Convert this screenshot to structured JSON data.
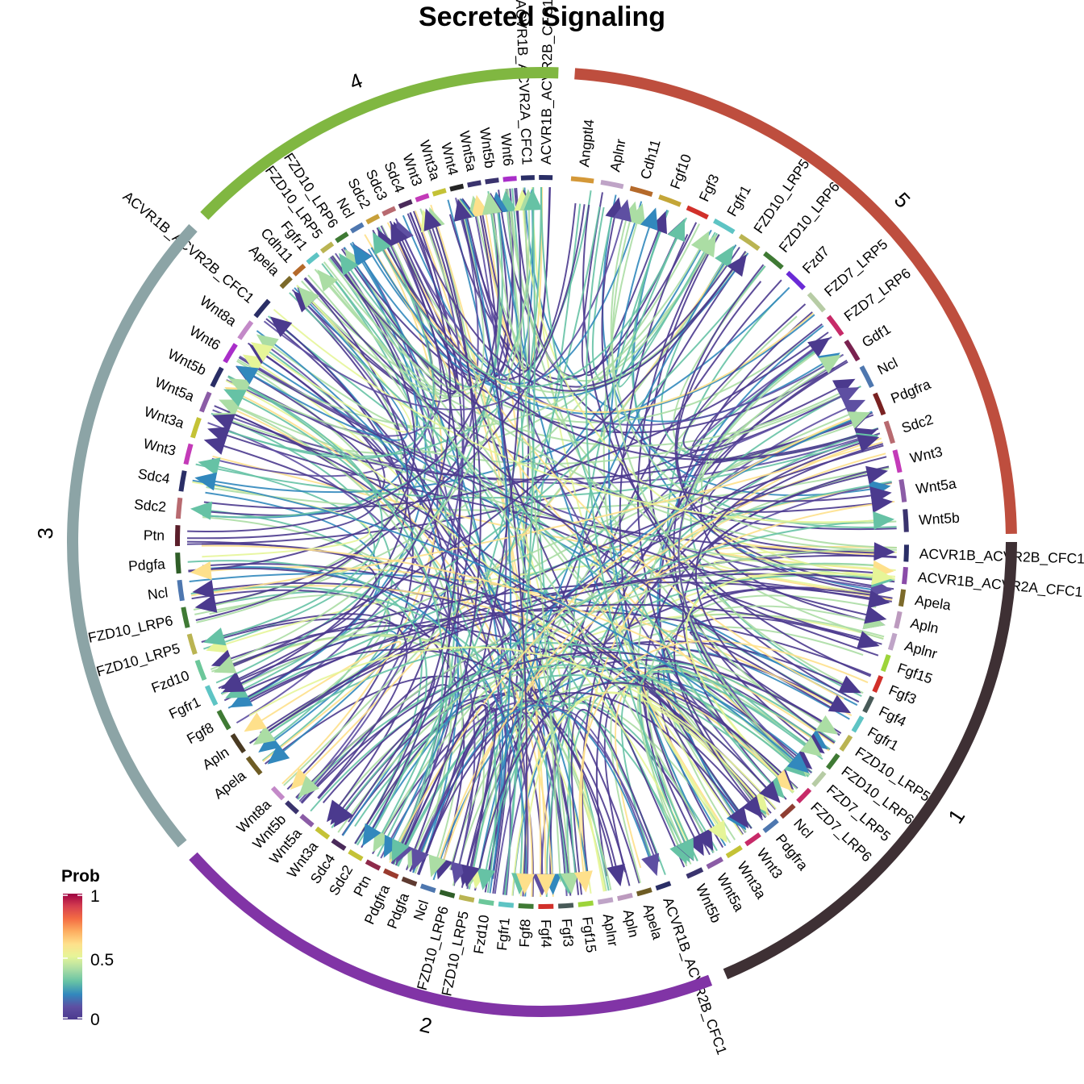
{
  "title": "Secreted Signaling",
  "legend": {
    "title": "Prob",
    "ticks": [
      "1",
      "0.5",
      "0"
    ],
    "gradient": [
      "#9E0142",
      "#D53E4F",
      "#F46D43",
      "#FDAE61",
      "#FEE08B",
      "#E6F598",
      "#ABDDA4",
      "#66C2A5",
      "#3288BD",
      "#5E4FA2",
      "#4B3A8E"
    ]
  },
  "groups": [
    {
      "label": "1",
      "color": "#3E3034"
    },
    {
      "label": "2",
      "color": "#8134A6"
    },
    {
      "label": "3",
      "color": "#8CA4A6"
    },
    {
      "label": "4",
      "color": "#80B741"
    },
    {
      "label": "5",
      "color": "#BE4E3E"
    }
  ],
  "sectors": [
    [
      "ACVR1B_ACVR2B_CFC1",
      "#2A2E66",
      0
    ],
    [
      "ACVR1B_ACVR2A_CFC1",
      "#8A4BA8",
      0
    ],
    [
      "Apela",
      "#7C6A2A",
      0
    ],
    [
      "Apln",
      "#BC9ABE",
      0
    ],
    [
      "Aplnr",
      "#BFA4C7",
      0
    ],
    [
      "Fgf15",
      "#9DD43A",
      0
    ],
    [
      "Fgf3",
      "#D1302A",
      0
    ],
    [
      "Fgf4",
      "#485A58",
      0
    ],
    [
      "Fgfr1",
      "#5EC4C4",
      0
    ],
    [
      "FZD10_LRP5",
      "#BAB452",
      0
    ],
    [
      "FZD10_LRP6",
      "#3F7A34",
      0
    ],
    [
      "FZD7_LRP5",
      "#B7CCA5",
      0
    ],
    [
      "FZD7_LRP6",
      "#C72A68",
      0
    ],
    [
      "Ncl",
      "#8F3E32",
      0
    ],
    [
      "Pdgfra",
      "#4E77AF",
      0
    ],
    [
      "Wnt3",
      "#C72A68",
      0
    ],
    [
      "Wnt3a",
      "#C4C236",
      0
    ],
    [
      "Wnt5a",
      "#8B5CA6",
      0
    ],
    [
      "Wnt5b",
      "#3A336E",
      0
    ],
    [
      "ACVR1B_ACVR2B_CFC1",
      "#2A2E66",
      1
    ],
    [
      "Apela",
      "#6E5C24",
      1
    ],
    [
      "Apln",
      "#BC9ABE",
      1
    ],
    [
      "Aplnr",
      "#BFA4C7",
      1
    ],
    [
      "Fgf15",
      "#9DD43A",
      1
    ],
    [
      "Fgf3",
      "#485A58",
      1
    ],
    [
      "Fgf4",
      "#D1302A",
      1
    ],
    [
      "Fgf8",
      "#3F7A34",
      1
    ],
    [
      "Fgfr1",
      "#5EC4C4",
      1
    ],
    [
      "Fzd10",
      "#6CC79A",
      1
    ],
    [
      "FZD10_LRP5",
      "#BAB452",
      1
    ],
    [
      "FZD10_LRP6",
      "#2F5E28",
      1
    ],
    [
      "Ncl",
      "#4E77AF",
      1
    ],
    [
      "Pdgfa",
      "#5E3A30",
      1
    ],
    [
      "Pdgfra",
      "#9A3A2E",
      1
    ],
    [
      "Ptn",
      "#8E2A4A",
      1
    ],
    [
      "Sdc2",
      "#C4C236",
      1
    ],
    [
      "Sdc4",
      "#4A2A5A",
      1
    ],
    [
      "Wnt3a",
      "#C4C236",
      1
    ],
    [
      "Wnt5a",
      "#8B5CA6",
      1
    ],
    [
      "Wnt5b",
      "#3A336E",
      1
    ],
    [
      "Wnt8a",
      "#C389C8",
      1
    ],
    [
      "Apela",
      "#6E5C24",
      2
    ],
    [
      "Apln",
      "#4A3A22",
      2
    ],
    [
      "Fgf8",
      "#3F7A34",
      2
    ],
    [
      "Fgfr1",
      "#5EC4C4",
      2
    ],
    [
      "Fzd10",
      "#6CC79A",
      2
    ],
    [
      "FZD10_LRP5",
      "#BAB452",
      2
    ],
    [
      "FZD10_LRP6",
      "#3F7A34",
      2
    ],
    [
      "Ncl",
      "#4E77AF",
      2
    ],
    [
      "Pdgfa",
      "#2F5E28",
      2
    ],
    [
      "Ptn",
      "#5A1E2A",
      2
    ],
    [
      "Sdc2",
      "#B86A70",
      2
    ],
    [
      "Sdc4",
      "#2A2E66",
      2
    ],
    [
      "Wnt3",
      "#C33AB8",
      2
    ],
    [
      "Wnt3a",
      "#C4C236",
      2
    ],
    [
      "Wnt5a",
      "#8B5CA6",
      2
    ],
    [
      "Wnt5b",
      "#2A2E66",
      2
    ],
    [
      "Wnt6",
      "#A92EC9",
      2
    ],
    [
      "Wnt8a",
      "#C389C8",
      2
    ],
    [
      "ACVR1B_ACVR2B_CFC1",
      "#2A2E66",
      2
    ],
    [
      "Apela",
      "#7C6A2A",
      3
    ],
    [
      "Cdh11",
      "#B56A2A",
      3
    ],
    [
      "Fgfr1",
      "#5EC4C4",
      3
    ],
    [
      "FZD10_LRP5",
      "#BAB452",
      3
    ],
    [
      "FZD10_LRP6",
      "#3F7A34",
      3
    ],
    [
      "Ncl",
      "#4E77AF",
      3
    ],
    [
      "Sdc2",
      "#C8A03A",
      3
    ],
    [
      "Sdc3",
      "#B86A70",
      3
    ],
    [
      "Sdc4",
      "#4A2A5A",
      3
    ],
    [
      "Wnt3",
      "#C33AB8",
      3
    ],
    [
      "Wnt3a",
      "#C4C236",
      3
    ],
    [
      "Wnt4",
      "#252525",
      3
    ],
    [
      "Wnt5a",
      "#3A336E",
      3
    ],
    [
      "Wnt5b",
      "#3A336E",
      3
    ],
    [
      "Wnt6",
      "#A92EC9",
      3
    ],
    [
      "ACVR1B_ACVR2A_CFC1",
      "#2A2E66",
      3
    ],
    [
      "ACVR1B_ACVR2B_CFC1",
      "#2A2E66",
      3
    ],
    [
      "Angptl4",
      "#D49838",
      4
    ],
    [
      "Aplnr",
      "#BFA4C7",
      4
    ],
    [
      "Cdh11",
      "#B56A2A",
      4
    ],
    [
      "Fgf10",
      "#C4A638",
      4
    ],
    [
      "Fgf3",
      "#D1302A",
      4
    ],
    [
      "Fgfr1",
      "#5EC4C4",
      4
    ],
    [
      "FZD10_LRP5",
      "#BAB452",
      4
    ],
    [
      "FZD10_LRP6",
      "#3F7A34",
      4
    ],
    [
      "Fzd7",
      "#6A2AD6",
      4
    ],
    [
      "FZD7_LRP5",
      "#B7CCA5",
      4
    ],
    [
      "FZD7_LRP6",
      "#C72A68",
      4
    ],
    [
      "Gdf1",
      "#7A2250",
      4
    ],
    [
      "Ncl",
      "#4E77AF",
      4
    ],
    [
      "Pdgfra",
      "#7A2222",
      4
    ],
    [
      "Sdc2",
      "#B86A70",
      4
    ],
    [
      "Wnt3",
      "#C33AB8",
      4
    ],
    [
      "Wnt5a",
      "#8B5CA6",
      4
    ],
    [
      "Wnt5b",
      "#3A336E",
      4
    ]
  ]
}
